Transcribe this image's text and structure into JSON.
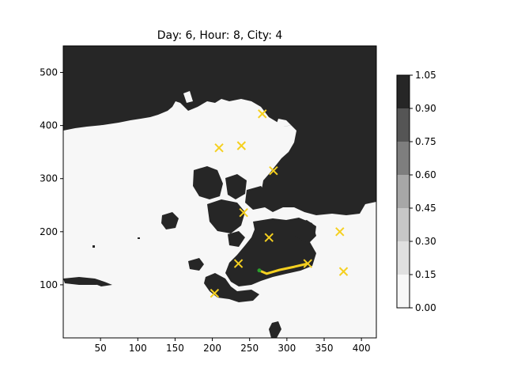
{
  "chart_data": {
    "type": "heatmap",
    "title": "Day: 6, Hour: 8, City: 4",
    "xlabel": "",
    "ylabel": "",
    "xlim": [
      0,
      420
    ],
    "ylim": [
      0,
      550
    ],
    "x_ticks": [
      50,
      100,
      150,
      200,
      250,
      300,
      350,
      400
    ],
    "y_ticks": [
      100,
      200,
      300,
      400,
      500
    ],
    "colorbar": {
      "levels": [
        0.0,
        0.15,
        0.3,
        0.45,
        0.6,
        0.75,
        0.9,
        1.05
      ],
      "tick_labels": [
        "0.00",
        "0.15",
        "0.30",
        "0.45",
        "0.60",
        "0.75",
        "0.90",
        "1.05"
      ],
      "colors": [
        "#f7f7f7",
        "#e0e0e0",
        "#c7c7c7",
        "#a7a7a7",
        "#7e7e7e",
        "#555555",
        "#262626"
      ]
    },
    "cities": [
      {
        "x": 267,
        "y": 422
      },
      {
        "x": 209,
        "y": 358
      },
      {
        "x": 239,
        "y": 362
      },
      {
        "x": 282,
        "y": 315
      },
      {
        "x": 242,
        "y": 236
      },
      {
        "x": 276,
        "y": 189
      },
      {
        "x": 371,
        "y": 200
      },
      {
        "x": 235,
        "y": 140
      },
      {
        "x": 376,
        "y": 125
      },
      {
        "x": 203,
        "y": 84
      },
      {
        "x": 328,
        "y": 140
      }
    ],
    "route": [
      {
        "x": 263,
        "y": 127
      },
      {
        "x": 273,
        "y": 121
      },
      {
        "x": 290,
        "y": 128
      },
      {
        "x": 310,
        "y": 134
      },
      {
        "x": 328,
        "y": 140
      }
    ],
    "start_point": {
      "x": 263,
      "y": 127
    },
    "marker_color": "#f5d020",
    "start_color": "#2ca02c",
    "land_color": "#262626",
    "sea_color": "#f7f7f7"
  }
}
